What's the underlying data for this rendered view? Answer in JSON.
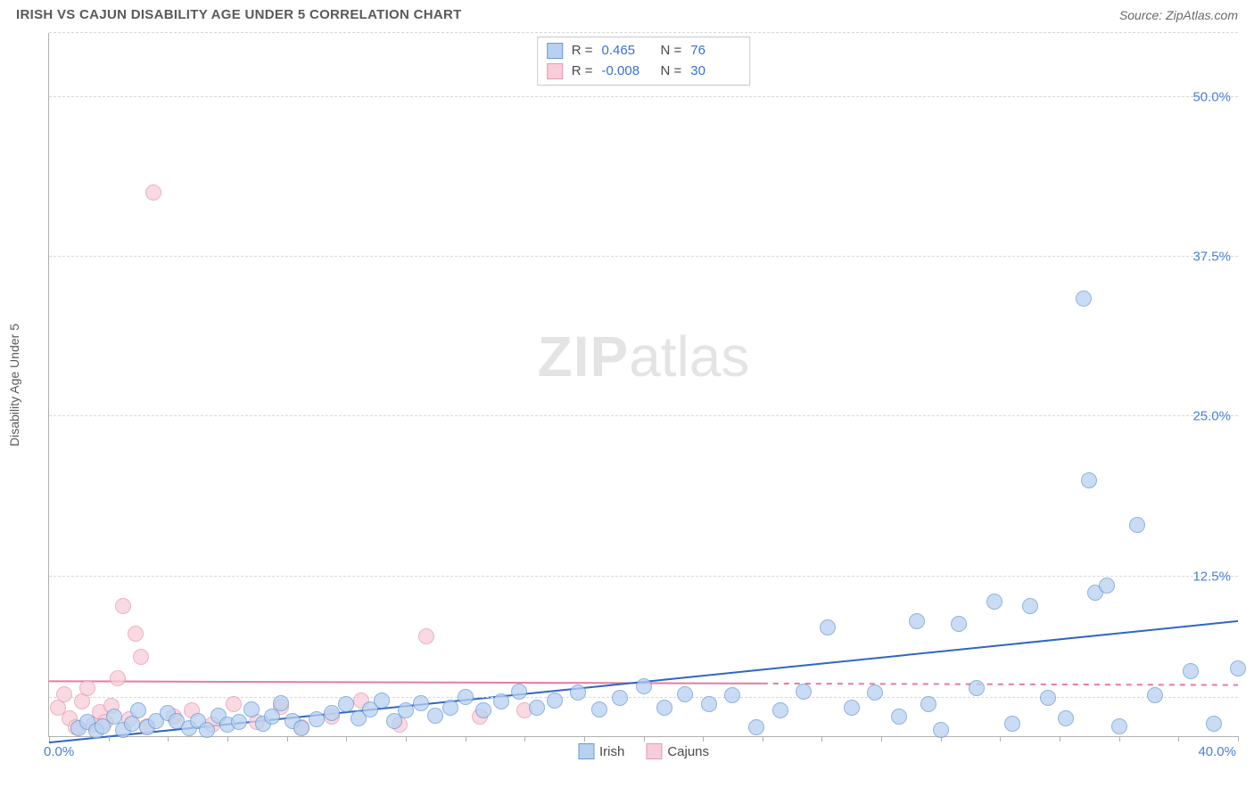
{
  "header": {
    "title": "IRISH VS CAJUN DISABILITY AGE UNDER 5 CORRELATION CHART",
    "source": "Source: ZipAtlas.com"
  },
  "chart": {
    "type": "scatter",
    "y_axis_title": "Disability Age Under 5",
    "watermark_zip": "ZIP",
    "watermark_atlas": "atlas",
    "xlim": [
      0,
      40
    ],
    "ylim": [
      0,
      55
    ],
    "x_ticks_minor_step": 2,
    "x_labels": [
      {
        "value": 0,
        "text": "0.0%"
      },
      {
        "value": 40,
        "text": "40.0%"
      }
    ],
    "y_labels": [
      {
        "value": 12.5,
        "text": "12.5%"
      },
      {
        "value": 25.0,
        "text": "25.0%"
      },
      {
        "value": 37.5,
        "text": "37.5%"
      },
      {
        "value": 50.0,
        "text": "50.0%"
      }
    ],
    "grid_values": [
      3,
      12.5,
      25,
      37.5,
      50,
      55
    ],
    "grid_color": "#d8d8d8",
    "background_color": "#ffffff",
    "marker_radius": 9,
    "marker_stroke_width": 1.5,
    "series": {
      "irish": {
        "label": "Irish",
        "fill": "#b8d1f0",
        "stroke": "#6a9ad6",
        "fill_opacity": 0.75,
        "R": "0.465",
        "N": "76",
        "trend": {
          "x1": 0,
          "y1": -0.5,
          "x2": 40,
          "y2": 9.0,
          "stroke": "#2f66c4",
          "width": 2,
          "dash": "none"
        },
        "points": [
          [
            1.0,
            0.6
          ],
          [
            1.3,
            1.1
          ],
          [
            1.6,
            0.4
          ],
          [
            1.8,
            0.8
          ],
          [
            2.2,
            1.5
          ],
          [
            2.5,
            0.5
          ],
          [
            2.8,
            1.0
          ],
          [
            3.0,
            2.0
          ],
          [
            3.3,
            0.7
          ],
          [
            3.6,
            1.2
          ],
          [
            4.0,
            1.8
          ],
          [
            4.3,
            1.2
          ],
          [
            4.7,
            0.6
          ],
          [
            5.0,
            1.2
          ],
          [
            5.3,
            0.5
          ],
          [
            5.7,
            1.6
          ],
          [
            6.0,
            0.9
          ],
          [
            6.4,
            1.1
          ],
          [
            6.8,
            2.1
          ],
          [
            7.2,
            1.0
          ],
          [
            7.5,
            1.5
          ],
          [
            7.8,
            2.6
          ],
          [
            8.2,
            1.2
          ],
          [
            8.5,
            0.6
          ],
          [
            9.0,
            1.3
          ],
          [
            9.5,
            1.8
          ],
          [
            10.0,
            2.5
          ],
          [
            10.4,
            1.4
          ],
          [
            10.8,
            2.1
          ],
          [
            11.2,
            2.8
          ],
          [
            11.6,
            1.2
          ],
          [
            12.0,
            2.0
          ],
          [
            12.5,
            2.6
          ],
          [
            13.0,
            1.6
          ],
          [
            13.5,
            2.2
          ],
          [
            14.0,
            3.1
          ],
          [
            14.6,
            2.0
          ],
          [
            15.2,
            2.7
          ],
          [
            15.8,
            3.5
          ],
          [
            16.4,
            2.2
          ],
          [
            17.0,
            2.8
          ],
          [
            17.8,
            3.4
          ],
          [
            18.5,
            2.1
          ],
          [
            19.2,
            3.0
          ],
          [
            20.0,
            3.9
          ],
          [
            20.7,
            2.2
          ],
          [
            21.4,
            3.3
          ],
          [
            22.2,
            2.5
          ],
          [
            23.0,
            3.2
          ],
          [
            23.8,
            0.7
          ],
          [
            24.6,
            2.0
          ],
          [
            25.4,
            3.5
          ],
          [
            26.2,
            8.5
          ],
          [
            27.0,
            2.2
          ],
          [
            27.8,
            3.4
          ],
          [
            28.6,
            1.5
          ],
          [
            29.2,
            9.0
          ],
          [
            29.6,
            2.5
          ],
          [
            30.0,
            0.5
          ],
          [
            30.6,
            8.8
          ],
          [
            31.2,
            3.8
          ],
          [
            31.8,
            10.5
          ],
          [
            32.4,
            1.0
          ],
          [
            33.0,
            10.2
          ],
          [
            33.6,
            3.0
          ],
          [
            34.2,
            1.4
          ],
          [
            34.8,
            34.2
          ],
          [
            35.0,
            20.0
          ],
          [
            35.2,
            11.2
          ],
          [
            35.6,
            11.8
          ],
          [
            36.0,
            0.8
          ],
          [
            36.6,
            16.5
          ],
          [
            37.2,
            3.2
          ],
          [
            38.4,
            5.1
          ],
          [
            39.2,
            1.0
          ],
          [
            40.0,
            5.3
          ]
        ]
      },
      "cajuns": {
        "label": "Cajuns",
        "fill": "#f7cdd9",
        "stroke": "#e699b1",
        "fill_opacity": 0.75,
        "R": "-0.008",
        "N": "30",
        "trend": {
          "x1": 0,
          "y1": 4.3,
          "x2": 40,
          "y2": 4.0,
          "stroke": "#e87aa0",
          "width": 2,
          "dash": "6 6",
          "solid_until_x": 24
        },
        "points": [
          [
            0.3,
            2.2
          ],
          [
            0.5,
            3.3
          ],
          [
            0.7,
            1.4
          ],
          [
            0.9,
            0.7
          ],
          [
            1.1,
            2.7
          ],
          [
            1.3,
            3.8
          ],
          [
            1.5,
            0.9
          ],
          [
            1.7,
            1.9
          ],
          [
            1.9,
            1.1
          ],
          [
            2.1,
            2.4
          ],
          [
            2.3,
            4.5
          ],
          [
            2.5,
            10.2
          ],
          [
            2.7,
            1.3
          ],
          [
            2.9,
            8.0
          ],
          [
            3.1,
            6.2
          ],
          [
            3.3,
            0.8
          ],
          [
            3.5,
            42.5
          ],
          [
            4.2,
            1.5
          ],
          [
            4.8,
            2.0
          ],
          [
            5.5,
            0.9
          ],
          [
            6.2,
            2.5
          ],
          [
            7.0,
            1.1
          ],
          [
            7.8,
            2.3
          ],
          [
            8.5,
            0.7
          ],
          [
            9.5,
            1.5
          ],
          [
            10.5,
            2.8
          ],
          [
            11.8,
            0.9
          ],
          [
            12.7,
            7.8
          ],
          [
            14.5,
            1.5
          ],
          [
            16.0,
            2.0
          ]
        ]
      }
    },
    "legend_order": [
      "irish",
      "cajuns"
    ]
  }
}
